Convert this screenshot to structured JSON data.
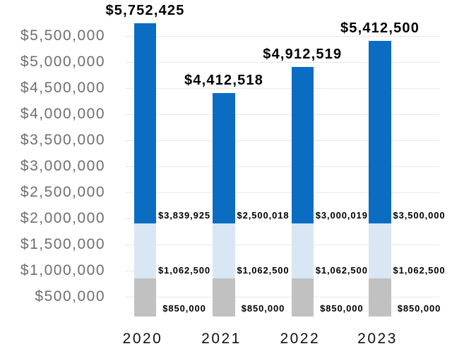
{
  "chart_data": {
    "type": "bar",
    "stacked": true,
    "grid": true,
    "legend": "none",
    "categories": [
      "2020",
      "2021",
      "2022",
      "2023"
    ],
    "series": [
      {
        "id": "segment-bottom",
        "color": "#c1c1c1",
        "values": [
          850000,
          850000,
          850000,
          850000
        ],
        "value_labels": [
          "$850,000",
          "$850,000",
          "$850,000",
          "$850,000"
        ]
      },
      {
        "id": "segment-middle",
        "color": "#d9e7f5",
        "values": [
          1062500,
          1062500,
          1062500,
          1062500
        ],
        "value_labels": [
          "$1,062,500",
          "$1,062,500",
          "$1,062,500",
          "$1,062,500"
        ]
      },
      {
        "id": "segment-top",
        "color": "#0a6dc2",
        "values": [
          3839925,
          2500018,
          3000019,
          3500000
        ],
        "value_labels": [
          "$3,839,925",
          "$2,500,018",
          "$3,000,019",
          "$3,500,000"
        ]
      }
    ],
    "totals": {
      "values": [
        5752425,
        4412518,
        4912519,
        5412500
      ],
      "labels": [
        "$5,752,425",
        "$4,412,518",
        "$4,912,519",
        "$5,412,500"
      ]
    },
    "y_axis": {
      "min": 125000,
      "max": 5900000,
      "tick_step": 500000,
      "tick_values": [
        500000,
        1000000,
        1500000,
        2000000,
        2500000,
        3000000,
        3500000,
        4000000,
        4500000,
        5000000,
        5500000
      ],
      "tick_labels": [
        "$500,000",
        "$1,000,000",
        "$1,500,000",
        "$2,000,000",
        "$2,500,000",
        "$3,000,000",
        "$3,500,000",
        "$4,000,000",
        "$4,500,000",
        "$5,000,000",
        "$5,500,000"
      ]
    },
    "colors": {
      "gridline": "#e8e8e8",
      "y_tick_label": "#6e6e6e",
      "x_tick_label": "#111111",
      "data_label": "#000000",
      "background": "#ffffff"
    }
  }
}
